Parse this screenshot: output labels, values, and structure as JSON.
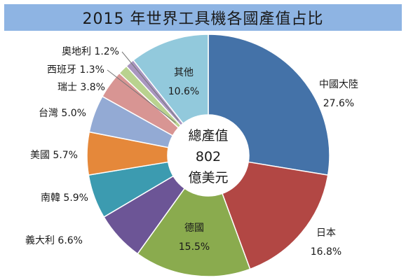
{
  "chart_data": {
    "type": "pie",
    "title": "2015 年世界工具機各國產值占比",
    "center_label": [
      "總產值",
      "802",
      "億美元"
    ],
    "slices": [
      {
        "name": "中國大陸",
        "value": 27.6,
        "color": "#4472a8"
      },
      {
        "name": "日本",
        "value": 16.8,
        "color": "#b24744"
      },
      {
        "name": "德國",
        "value": 15.5,
        "color": "#8aab4e"
      },
      {
        "name": "義大利",
        "value": 6.6,
        "color": "#6c5596"
      },
      {
        "name": "南韓",
        "value": 5.9,
        "color": "#3c9bb0"
      },
      {
        "name": "美國",
        "value": 5.7,
        "color": "#e5883a"
      },
      {
        "name": "台灣",
        "value": 5.0,
        "color": "#93aad4"
      },
      {
        "name": "瑞士",
        "value": 3.8,
        "color": "#d89593"
      },
      {
        "name": "西班牙",
        "value": 1.3,
        "color": "#b9d28f"
      },
      {
        "name": "奧地利",
        "value": 1.2,
        "color": "#a996c0"
      },
      {
        "name": "其他",
        "value": 10.6,
        "color": "#92c9dc"
      }
    ],
    "legend": "none"
  }
}
